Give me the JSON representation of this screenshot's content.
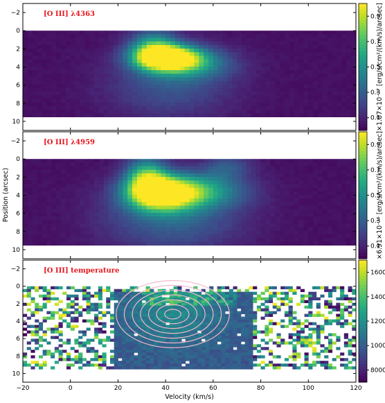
{
  "chart_data": [
    {
      "type": "heatmap",
      "title": "[O III] λ4363",
      "xlim": [
        -20,
        120
      ],
      "ylim": [
        11,
        -3
      ],
      "yticks": [
        -2,
        0,
        2,
        4,
        6,
        8,
        10
      ],
      "data_rows": [
        0,
        9.5
      ],
      "colormap": "viridis",
      "colorbar": {
        "range": [
          0,
          1
        ],
        "ticks": [
          "0.1",
          "0.3",
          "0.5",
          "0.7",
          "0.9"
        ],
        "tick_values": [
          0.1,
          0.3,
          0.5,
          0.7,
          0.9
        ],
        "label": "×1.87×10⁻¹⁷ [erg/s/cm²/(km/s)/arcsec]"
      },
      "features": [
        {
          "x": 41,
          "y": 3.0,
          "peak": 1.0,
          "sx": 9,
          "sy": 0.9
        },
        {
          "x": 35,
          "y": 2.0,
          "peak": 0.55,
          "sx": 7,
          "sy": 1.4
        },
        {
          "x": 50,
          "y": 3.6,
          "peak": 0.4,
          "sx": 12,
          "sy": 1.2
        },
        {
          "x": 42,
          "y": 6.0,
          "peak": 0.22,
          "sx": 18,
          "sy": 2.5
        }
      ]
    },
    {
      "type": "heatmap",
      "title": "[O III] λ4959",
      "xlim": [
        -20,
        120
      ],
      "ylim": [
        11,
        -3
      ],
      "yticks": [
        -2,
        0,
        2,
        4,
        6,
        8,
        10
      ],
      "ylabel": "Position (arcsec)",
      "data_rows": [
        0,
        9.5
      ],
      "colormap": "viridis",
      "colorbar": {
        "range": [
          0,
          1
        ],
        "ticks": [
          "0.1",
          "0.3",
          "0.5",
          "0.7",
          "0.9"
        ],
        "tick_values": [
          0.1,
          0.3,
          0.5,
          0.7,
          0.9
        ],
        "label": "×6.91×10⁻¹⁶ [erg/s/cm²/(km/s)/arcsec]"
      },
      "features": [
        {
          "x": 38,
          "y": 3.8,
          "peak": 1.0,
          "sx": 10,
          "sy": 1.3
        },
        {
          "x": 32,
          "y": 2.0,
          "peak": 0.6,
          "sx": 6,
          "sy": 1.5
        },
        {
          "x": 55,
          "y": 3.5,
          "peak": 0.45,
          "sx": 13,
          "sy": 1.3
        },
        {
          "x": 43,
          "y": 6.5,
          "peak": 0.28,
          "sx": 20,
          "sy": 2.6
        },
        {
          "x": 66,
          "y": 0.8,
          "peak": 0.22,
          "sx": 7,
          "sy": 1.0
        }
      ]
    },
    {
      "type": "heatmap",
      "title": "[O III] temperature",
      "xlim": [
        -20,
        120
      ],
      "ylim": [
        11,
        -3
      ],
      "yticks": [
        -2,
        0,
        2,
        4,
        6,
        8,
        10
      ],
      "xticks": [
        -20,
        0,
        20,
        40,
        60,
        80,
        100,
        120
      ],
      "xlabel": "Velocity (km/s)",
      "data_rows": [
        0,
        9.5
      ],
      "colormap": "viridis",
      "colorbar": {
        "range": [
          7000,
          17000
        ],
        "ticks": [
          "8000",
          "10000",
          "12000",
          "14000",
          "16000"
        ],
        "tick_values": [
          8000,
          10000,
          12000,
          14000,
          16000
        ],
        "label": ""
      },
      "contour_center": {
        "x": 43,
        "y": 3.2
      },
      "contour_color": "#f2b8c8"
    }
  ]
}
